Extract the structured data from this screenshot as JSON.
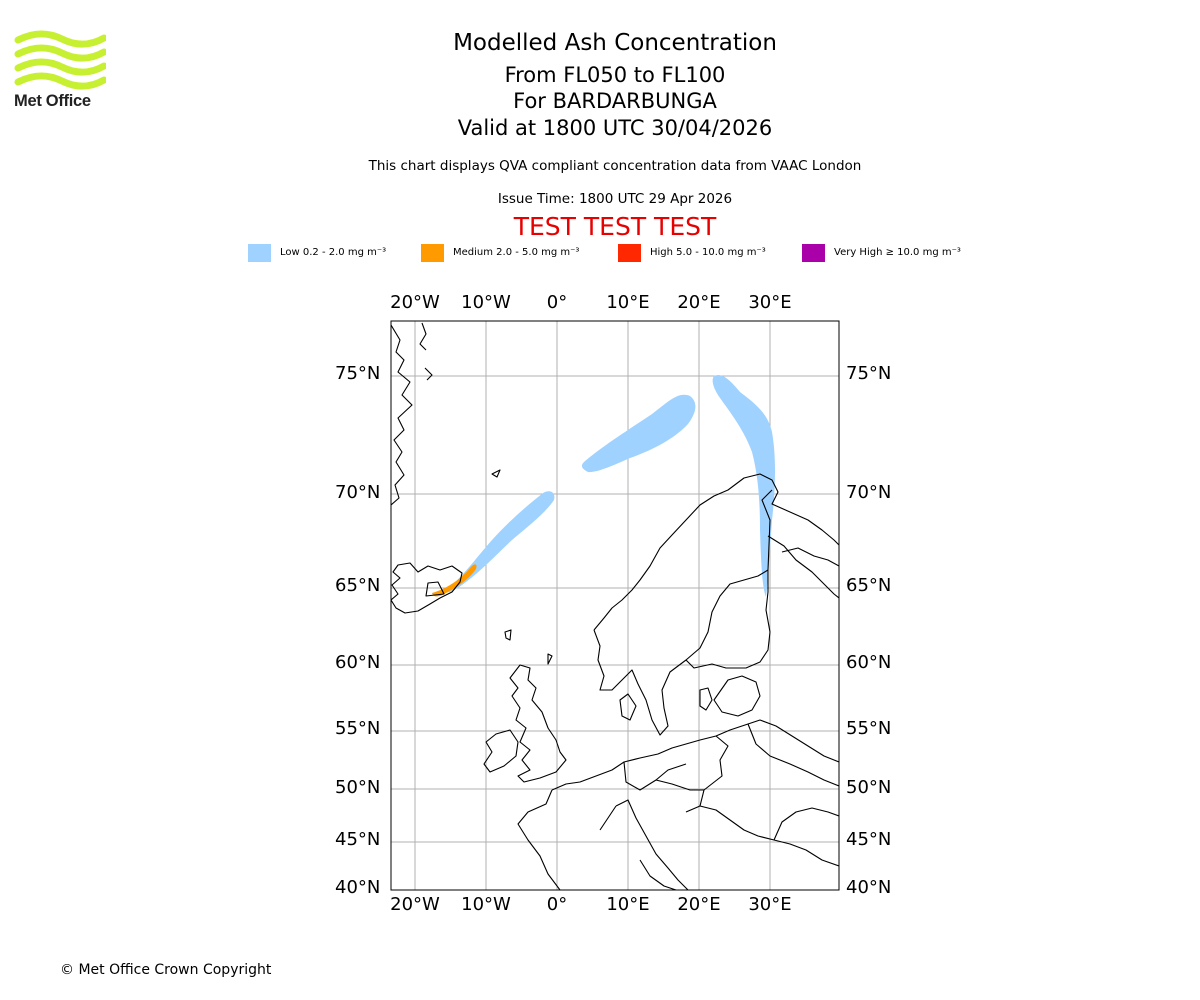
{
  "logo": {
    "text": "Met Office",
    "accent_color": "#c8f032"
  },
  "title": {
    "main": "Modelled Ash Concentration",
    "levels": "From FL050 to FL100",
    "volcano": "For BARDARBUNGA",
    "valid": "Valid at 1800 UTC 30/04/2026"
  },
  "subtitle": "This chart displays QVA compliant concentration data from VAAC London",
  "issue_time": "Issue Time: 1800 UTC 29 Apr 2026",
  "test_banner": "TEST TEST TEST",
  "legend": [
    {
      "label": "Low 0.2 - 2.0 mg m⁻³",
      "color": "#a0d2ff"
    },
    {
      "label": "Medium 2.0 - 5.0 mg m⁻³",
      "color": "#ff9b00"
    },
    {
      "label": "High 5.0 - 10.0 mg m⁻³",
      "color": "#ff2800"
    },
    {
      "label": "Very High ≥ 10.0 mg m⁻³",
      "color": "#aa00aa"
    }
  ],
  "map": {
    "lon_labels": [
      "20°W",
      "10°W",
      "0°",
      "10°E",
      "20°E",
      "30°E"
    ],
    "lat_labels": [
      "75°N",
      "70°N",
      "65°N",
      "60°N",
      "55°N",
      "50°N",
      "45°N",
      "40°N"
    ]
  },
  "copyright": "© Met Office Crown Copyright"
}
